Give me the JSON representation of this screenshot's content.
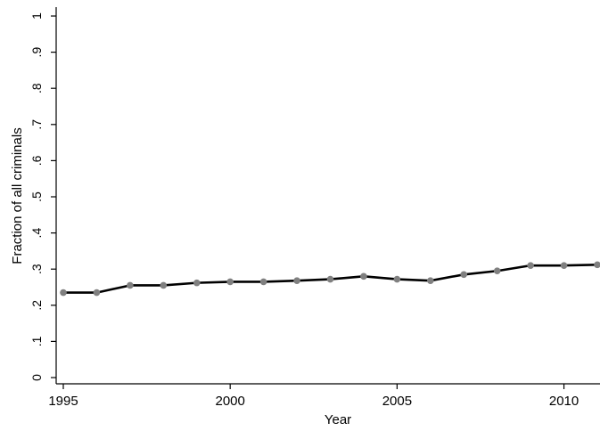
{
  "chart_data": {
    "type": "line",
    "title": "",
    "xlabel": "Year",
    "ylabel": "Fraction of all criminals",
    "xlim": [
      1995,
      2011
    ],
    "ylim": [
      0,
      1
    ],
    "x_ticks": [
      1995,
      2000,
      2005,
      2010
    ],
    "x_tick_labels": [
      "1995",
      "2000",
      "2005",
      "2010"
    ],
    "y_ticks": [
      0,
      0.1,
      0.2,
      0.3,
      0.4,
      0.5,
      0.6,
      0.7,
      0.8,
      0.9,
      1
    ],
    "y_tick_labels": [
      "0",
      ".1",
      ".2",
      ".3",
      ".4",
      ".5",
      ".6",
      ".7",
      ".8",
      ".9",
      "1"
    ],
    "grid": false,
    "legend": "none",
    "series": [
      {
        "x": [
          1995,
          1996,
          1997,
          1998,
          1999,
          2000,
          2001,
          2002,
          2003,
          2004,
          2005,
          2006,
          2007,
          2008,
          2009,
          2010,
          2011
        ],
        "values": [
          0.235,
          0.235,
          0.255,
          0.255,
          0.262,
          0.265,
          0.265,
          0.268,
          0.272,
          0.28,
          0.272,
          0.268,
          0.285,
          0.295,
          0.31,
          0.31,
          0.312
        ],
        "line_color": "#000000",
        "marker_color": "#808080"
      }
    ]
  }
}
